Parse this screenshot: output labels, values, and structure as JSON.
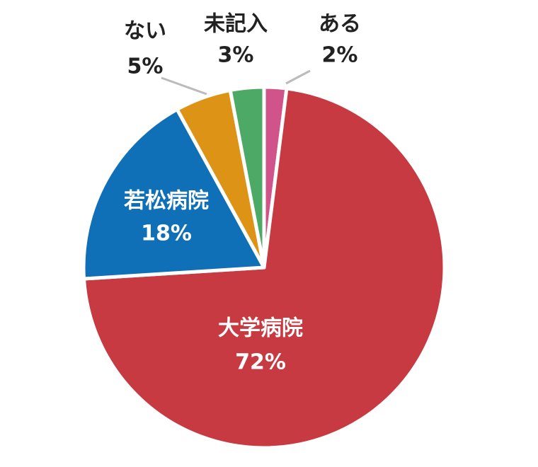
{
  "chart_data": {
    "type": "pie",
    "categories": [
      "ある",
      "大学病院",
      "若松病院",
      "ない",
      "未記入"
    ],
    "values": [
      2,
      72,
      18,
      5,
      3
    ],
    "value_labels": [
      "2%",
      "72%",
      "18%",
      "5%",
      "3%"
    ],
    "colors": [
      "#d0548a",
      "#c83a41",
      "#0f70b8",
      "#dd9416",
      "#4ca966"
    ]
  }
}
